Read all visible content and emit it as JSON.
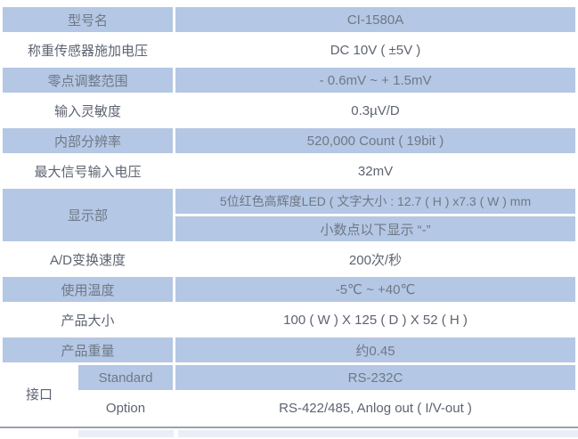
{
  "table": {
    "rows": [
      {
        "label": "型号名",
        "value": "CI-1580A"
      },
      {
        "label": "称重传感器施加电压",
        "value": "DC 10V ( ±5V )"
      },
      {
        "label": "零点调整范围",
        "value": "- 0.6mV ~ + 1.5mV"
      },
      {
        "label": "输入灵敏度",
        "value": "0.3µV/D"
      },
      {
        "label": "内部分辨率",
        "value": "520,000 Count ( 19bit )"
      },
      {
        "label": "最大信号输入电压",
        "value": "32mV"
      },
      {
        "label": "显示部",
        "values": [
          "5位红色高辉度LED ( 文字大小 : 12.7 ( H ) x7.3 ( W ) mm",
          "小数点以下显示 “-”"
        ]
      },
      {
        "label": "A/D变换速度",
        "value": "200次/秒"
      },
      {
        "label": "使用温度",
        "value": "-5℃ ~ +40℃"
      },
      {
        "label": "产品大小",
        "value": "100 ( W ) X 125 ( D ) X 52 ( H )"
      },
      {
        "label": "产品重量",
        "value": "约0.45"
      },
      {
        "label": "接口",
        "sub": [
          {
            "type": "Standard",
            "value": "RS-232C"
          },
          {
            "type": "Option",
            "value": "RS-422/485, Anlog out ( I/V-out )"
          }
        ]
      }
    ],
    "colors": {
      "row_blue": "#b4c7e4",
      "text_on_blue": "#6f7886",
      "text_on_white": "#5d6470",
      "bottom_rule": "#99a2ad",
      "next_row_hint": "#e9eef7"
    }
  }
}
